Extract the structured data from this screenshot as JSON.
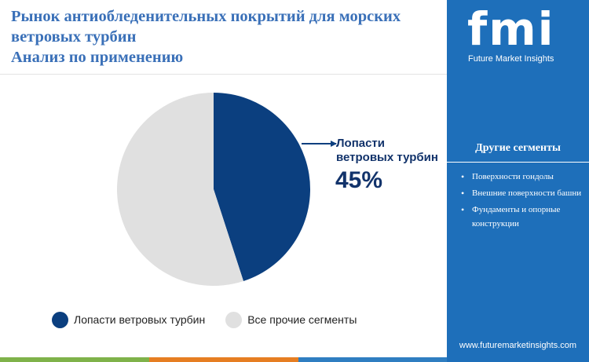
{
  "header": {
    "title_lines": [
      "Рынок антиобледенительных покрытий для морских",
      "ветровых турбин",
      "Анализ по применению"
    ]
  },
  "chart_data": {
    "type": "pie",
    "slices": [
      {
        "label": "Лопасти ветровых турбин",
        "value": 45,
        "color": "#0b3f7f"
      },
      {
        "label": "Все прочие сегменты",
        "value": 55,
        "color": "#e0e0e0"
      }
    ],
    "callout": {
      "label_lines": [
        "Лопасти",
        "ветровых турбин"
      ],
      "value_text": "45%"
    },
    "legend": {
      "placement": "bottom"
    }
  },
  "sidebar": {
    "logo": {
      "letters": "fmi",
      "tagline": "Future Market Insights"
    },
    "panel_title": "Другие сегменты",
    "segments": [
      "Поверхности гондолы",
      "Внешние поверхности башни",
      "Фундаменты и опорные конструкции"
    ],
    "website": "www.futuremarketinsights.com"
  },
  "colors": {
    "title": "#3a70b8",
    "sidebar_bg": "#1e6fba",
    "primary_slice": "#0b3f7f",
    "secondary_slice": "#e0e0e0",
    "callout_text": "#12336b"
  }
}
